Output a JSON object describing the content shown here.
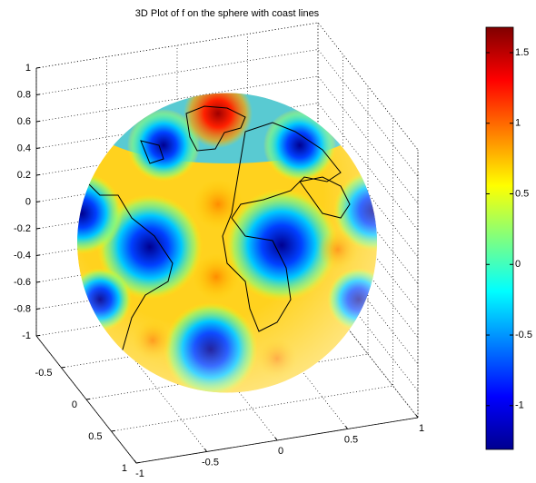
{
  "chart_data": {
    "type": "surface3d",
    "title": "3D Plot of f on the sphere with coast lines",
    "xlim": [
      -1,
      1
    ],
    "xticks": [
      -1,
      -0.5,
      0,
      0.5,
      1
    ],
    "ylim": [
      -1,
      1
    ],
    "yticks": [
      -0.5,
      0,
      0.5,
      1
    ],
    "zlim": [
      -1,
      1
    ],
    "zticks": [
      -1,
      -0.8,
      -0.6,
      -0.4,
      -0.2,
      0,
      0.2,
      0.4,
      0.6,
      0.8,
      1
    ],
    "grid": true,
    "colorbar": {
      "clim": [
        -1.31,
        1.68
      ],
      "ticks": [
        -1,
        -0.5,
        0,
        0.5,
        1,
        1.5
      ],
      "colormap": "jet"
    }
  }
}
